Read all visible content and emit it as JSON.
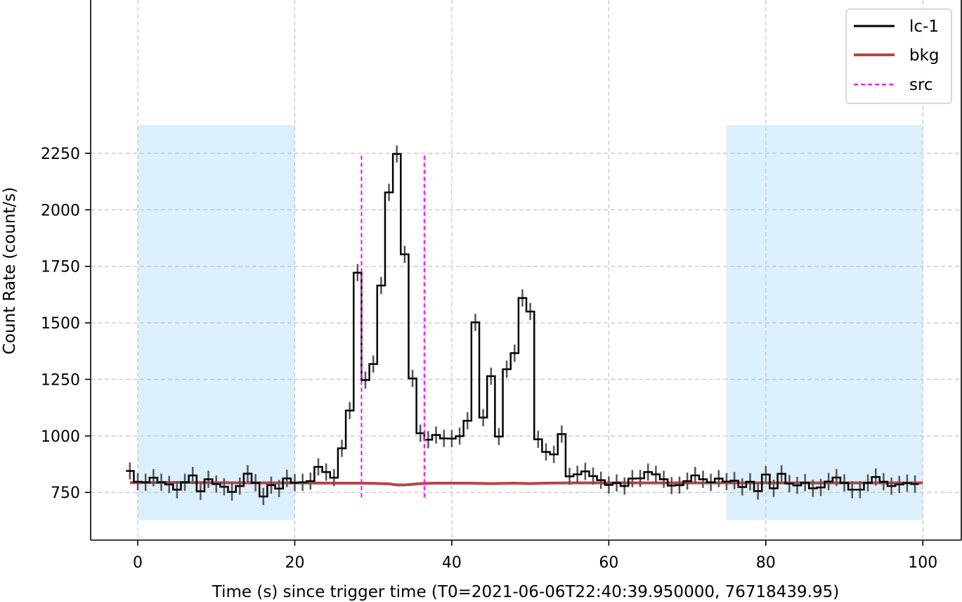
{
  "chart_data": {
    "type": "line",
    "title": "",
    "xlabel": "Time (s) since trigger time (T0=2021-06-06T22:40:39.950000, 76718439.95)",
    "ylabel": "Count Rate (count/s)",
    "xlim": [
      -6.0,
      104.9
    ],
    "ylim": [
      539,
      2928
    ],
    "xticks": [
      0,
      20,
      40,
      60,
      80,
      100
    ],
    "yticks": [
      750,
      1000,
      1250,
      1500,
      1750,
      2000,
      2250
    ],
    "grid": true,
    "legend": "top-right",
    "legend_entries": [
      "lc-1",
      "bkg",
      "src"
    ],
    "background_intervals": [
      [
        0,
        20
      ],
      [
        75,
        100
      ]
    ],
    "background_span_y": [
      627,
      2375
    ],
    "source_interval": [
      28.5,
      36.5
    ],
    "source_line_y": [
      728,
      2250
    ],
    "series": [
      {
        "name": "lc-1",
        "style": "step",
        "color": "#000000",
        "bin_width": 1,
        "x_start": -1.5,
        "values": [
          845,
          797,
          795,
          815,
          795,
          785,
          762,
          795,
          825,
          755,
          808,
          787,
          775,
          752,
          778,
          833,
          793,
          732,
          782,
          767,
          812,
          793,
          795,
          800,
          863,
          840,
          815,
          945,
          1112,
          1722,
          1247,
          1318,
          1665,
          2077,
          2247,
          1803,
          1254,
          1012,
          983,
          1004,
          989,
          988,
          999,
          1067,
          1502,
          1081,
          1264,
          997,
          1295,
          1366,
          1610,
          1550,
          985,
          929,
          918,
          1008,
          821,
          830,
          843,
          822,
          804,
          783,
          792,
          778,
          811,
          812,
          840,
          830,
          808,
          780,
          782,
          800,
          825,
          808,
          795,
          811,
          798,
          802,
          774,
          797,
          756,
          829,
          768,
          832,
          789,
          781,
          793,
          768,
          772,
          798,
          816,
          792,
          762,
          762,
          792,
          818,
          797,
          778,
          785,
          791,
          787
        ],
        "error": 38
      },
      {
        "name": "bkg",
        "style": "line",
        "color": "#b94343",
        "x": [
          -1,
          5,
          10,
          15,
          20,
          25,
          28,
          30,
          32,
          33,
          34,
          35,
          36,
          38,
          42,
          45,
          48,
          50,
          52,
          55,
          60,
          70,
          80,
          90,
          100
        ],
        "values": [
          793,
          794,
          793,
          792,
          792,
          791,
          791,
          790,
          788,
          783,
          783,
          786,
          789,
          791,
          791,
          789,
          791,
          789,
          791,
          792,
          792,
          792,
          792,
          792,
          792
        ]
      },
      {
        "name": "src",
        "style": "dashed-vertical",
        "color": "#ff00ff",
        "x": [
          28.5,
          36.5
        ]
      }
    ]
  }
}
